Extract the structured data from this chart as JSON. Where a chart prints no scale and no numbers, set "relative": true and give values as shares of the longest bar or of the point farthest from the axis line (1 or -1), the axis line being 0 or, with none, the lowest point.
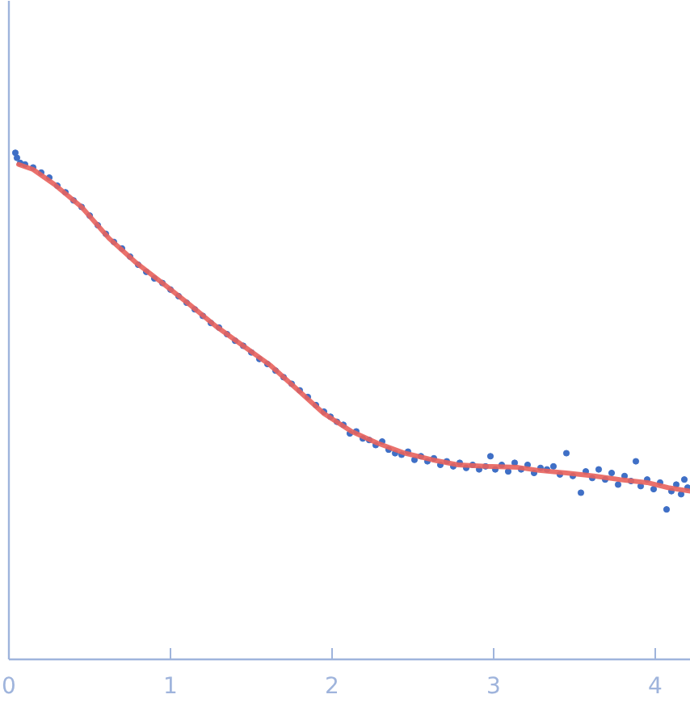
{
  "chart_data": {
    "type": "scatter",
    "relative": true,
    "xlim": [
      0,
      4.22
    ],
    "xticks": [
      0,
      1,
      2,
      3,
      4
    ],
    "tick_labels": "x",
    "grid": false,
    "series": [
      {
        "color": "#3f6fc6",
        "marker": "circle",
        "x": [
          0.04,
          0.05,
          0.07,
          0.1,
          0.15,
          0.2,
          0.25,
          0.3,
          0.35,
          0.4,
          0.45,
          0.5,
          0.55,
          0.6,
          0.65,
          0.7,
          0.75,
          0.8,
          0.85,
          0.9,
          0.95,
          1.0,
          1.05,
          1.1,
          1.15,
          1.2,
          1.25,
          1.3,
          1.35,
          1.4,
          1.45,
          1.5,
          1.55,
          1.6,
          1.65,
          1.7,
          1.75,
          1.8,
          1.85,
          1.9,
          1.95,
          1.99,
          2.03,
          2.07,
          2.11,
          2.15,
          2.19,
          2.23,
          2.27,
          2.31,
          2.35,
          2.39,
          2.43,
          2.47,
          2.51,
          2.55,
          2.59,
          2.63,
          2.67,
          2.71,
          2.75,
          2.79,
          2.83,
          2.87,
          2.91,
          2.95,
          2.98,
          3.01,
          3.05,
          3.09,
          3.13,
          3.17,
          3.21,
          3.25,
          3.29,
          3.33,
          3.37,
          3.41,
          3.45,
          3.49,
          3.54,
          3.57,
          3.61,
          3.65,
          3.69,
          3.73,
          3.77,
          3.81,
          3.85,
          3.88,
          3.91,
          3.95,
          3.99,
          4.03,
          4.07,
          4.1,
          4.13,
          4.16,
          4.18,
          4.2
        ],
        "values": [
          1.0,
          0.99,
          0.98,
          0.977,
          0.971,
          0.961,
          0.951,
          0.935,
          0.922,
          0.906,
          0.893,
          0.876,
          0.857,
          0.84,
          0.824,
          0.811,
          0.795,
          0.779,
          0.765,
          0.752,
          0.743,
          0.73,
          0.717,
          0.704,
          0.691,
          0.678,
          0.664,
          0.655,
          0.642,
          0.629,
          0.619,
          0.606,
          0.593,
          0.583,
          0.57,
          0.557,
          0.544,
          0.531,
          0.518,
          0.502,
          0.489,
          0.479,
          0.469,
          0.463,
          0.446,
          0.45,
          0.436,
          0.433,
          0.423,
          0.43,
          0.414,
          0.407,
          0.404,
          0.41,
          0.394,
          0.401,
          0.391,
          0.397,
          0.384,
          0.391,
          0.381,
          0.388,
          0.378,
          0.384,
          0.375,
          0.381,
          0.401,
          0.375,
          0.384,
          0.371,
          0.388,
          0.375,
          0.384,
          0.368,
          0.378,
          0.375,
          0.381,
          0.365,
          0.407,
          0.362,
          0.329,
          0.371,
          0.358,
          0.375,
          0.355,
          0.368,
          0.345,
          0.362,
          0.352,
          0.391,
          0.342,
          0.355,
          0.336,
          0.349,
          0.296,
          0.332,
          0.345,
          0.326,
          0.355,
          0.339
        ]
      },
      {
        "type": "line",
        "color": "#e8625c",
        "marker": "none",
        "x": [
          0.06,
          0.15,
          0.28,
          0.45,
          0.62,
          0.78,
          0.95,
          1.12,
          1.28,
          1.45,
          1.62,
          1.78,
          1.95,
          2.12,
          2.28,
          2.45,
          2.62,
          2.78,
          2.95,
          3.15,
          3.28,
          3.45,
          3.62,
          3.78,
          3.95,
          4.08,
          4.22
        ],
        "values": [
          0.977,
          0.967,
          0.938,
          0.893,
          0.831,
          0.785,
          0.743,
          0.7,
          0.658,
          0.619,
          0.58,
          0.534,
          0.485,
          0.45,
          0.427,
          0.407,
          0.394,
          0.384,
          0.381,
          0.379,
          0.373,
          0.368,
          0.362,
          0.355,
          0.349,
          0.339,
          0.332
        ]
      }
    ]
  }
}
